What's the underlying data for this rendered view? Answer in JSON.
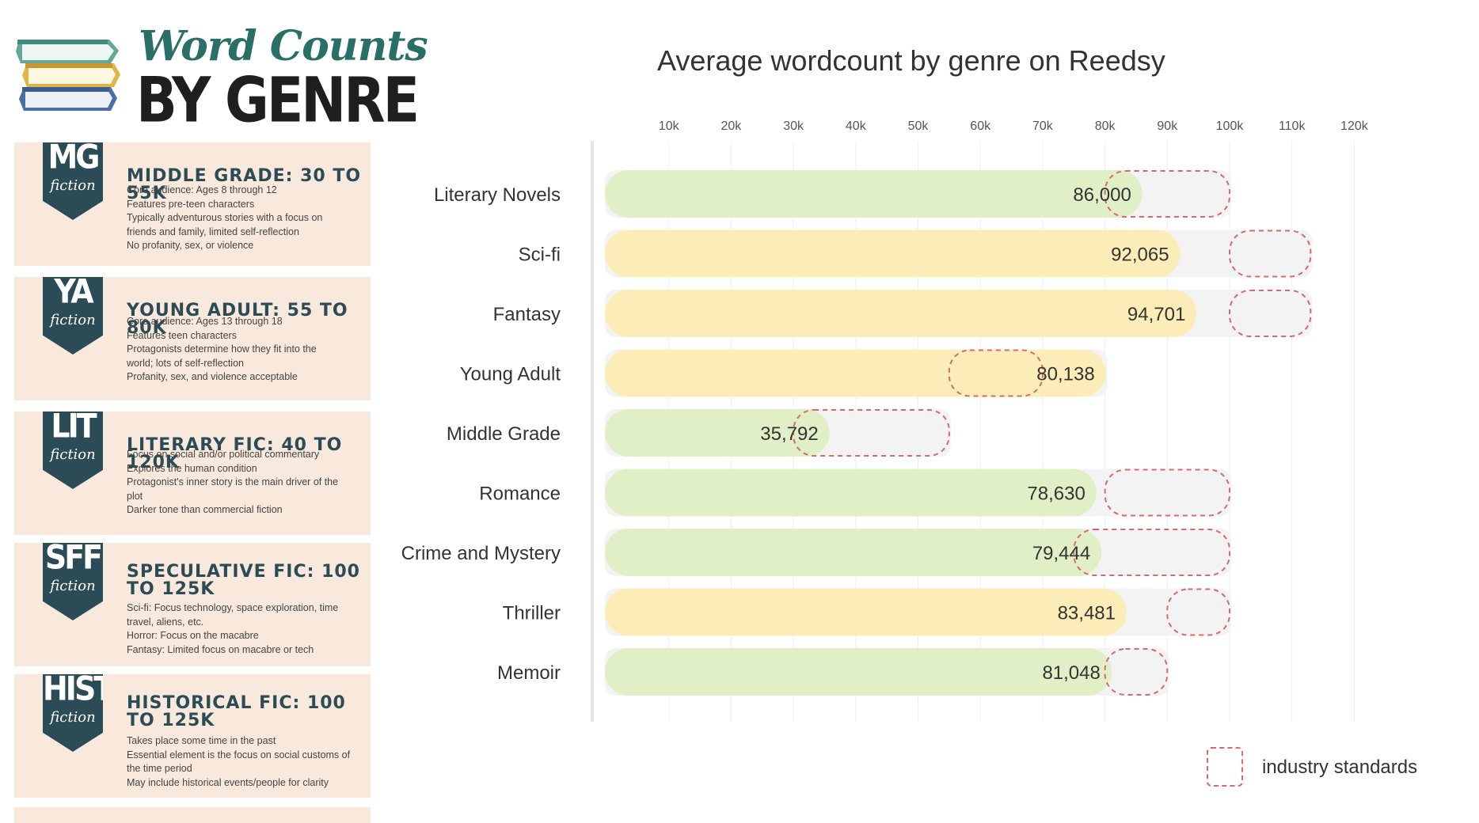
{
  "logo": {
    "script_text": "Word Counts",
    "main_text": "BY GENRE"
  },
  "cards": [
    {
      "abbr": "MG",
      "abbr_sub": "fiction",
      "title": "MIDDLE GRADE: 30 TO 55K",
      "lines": [
        "Core audience: Ages 8 through 12",
        "Features pre-teen characters",
        "Typically adventurous stories with a focus on",
        "friends and family, limited self-reflection",
        "No profanity, sex, or violence"
      ]
    },
    {
      "abbr": "YA",
      "abbr_sub": "fiction",
      "title": "YOUNG ADULT: 55 TO 80K",
      "lines": [
        "Core audience: Ages 13 through 18",
        "Features teen characters",
        "Protagonists determine how they fit into the",
        "world; lots of self-reflection",
        "Profanity, sex, and violence acceptable"
      ]
    },
    {
      "abbr": "LIT",
      "abbr_sub": "fiction",
      "title": "LITERARY FIC: 40 TO 120K",
      "lines": [
        "Focus on social and/or political commentary",
        "Explores the human condition",
        "Protagonist's inner story is the main driver of the",
        "plot",
        "Darker tone than commercial fiction"
      ]
    },
    {
      "abbr": "SFF",
      "abbr_sub": "fiction",
      "title": "SPECULATIVE FIC: 100 TO 125K",
      "lines": [
        "Sci-fi: Focus technology, space exploration, time",
        "travel, aliens, etc.",
        "Horror: Focus on the macabre",
        "Fantasy: Limited focus on macabre or tech"
      ]
    },
    {
      "abbr": "HIST",
      "abbr_sub": "fiction",
      "title": "HISTORICAL FIC: 100 TO 125K",
      "lines": [
        "Takes place some time in the past",
        "Essential element is the focus on social customs of",
        "the time period",
        "May include historical events/people for clarity"
      ]
    }
  ],
  "colors": {
    "green": "#e1efc6",
    "yellow": "#fcedb8",
    "track": "#f3f3f3",
    "dash": "#d86a6a",
    "ribbon": "#2b4b56",
    "card": "#f8e9dc"
  },
  "chart_data": {
    "type": "bar",
    "orientation": "horizontal",
    "title": "Average wordcount by genre on Reedsy",
    "x_ticks": [
      "10k",
      "20k",
      "30k",
      "40k",
      "50k",
      "60k",
      "70k",
      "80k",
      "90k",
      "100k",
      "110k",
      "120k"
    ],
    "xlim": [
      0,
      120000
    ],
    "categories": [
      "Literary Novels",
      "Sci-fi",
      "Fantasy",
      "Young Adult",
      "Middle Grade",
      "Romance",
      "Crime and Mystery",
      "Thriller",
      "Memoir"
    ],
    "values": [
      86000,
      92065,
      94701,
      80138,
      35792,
      78630,
      79444,
      83481,
      81048
    ],
    "value_labels": [
      "86,000",
      "92,065",
      "94,701",
      "80,138",
      "35,792",
      "78,630",
      "79,444",
      "83,481",
      "81,048"
    ],
    "bar_colors": [
      "green",
      "yellow",
      "yellow",
      "yellow",
      "green",
      "green",
      "green",
      "yellow",
      "green"
    ],
    "industry_standards": [
      [
        80000,
        100000
      ],
      [
        100000,
        113000
      ],
      [
        100000,
        113000
      ],
      [
        55000,
        70000
      ],
      [
        30000,
        55000
      ],
      [
        80000,
        100000
      ],
      [
        75000,
        100000
      ],
      [
        90000,
        100000
      ],
      [
        80000,
        90000
      ]
    ],
    "legend_label": "industry standards",
    "legend_position": "bottom-right",
    "grid": true
  }
}
